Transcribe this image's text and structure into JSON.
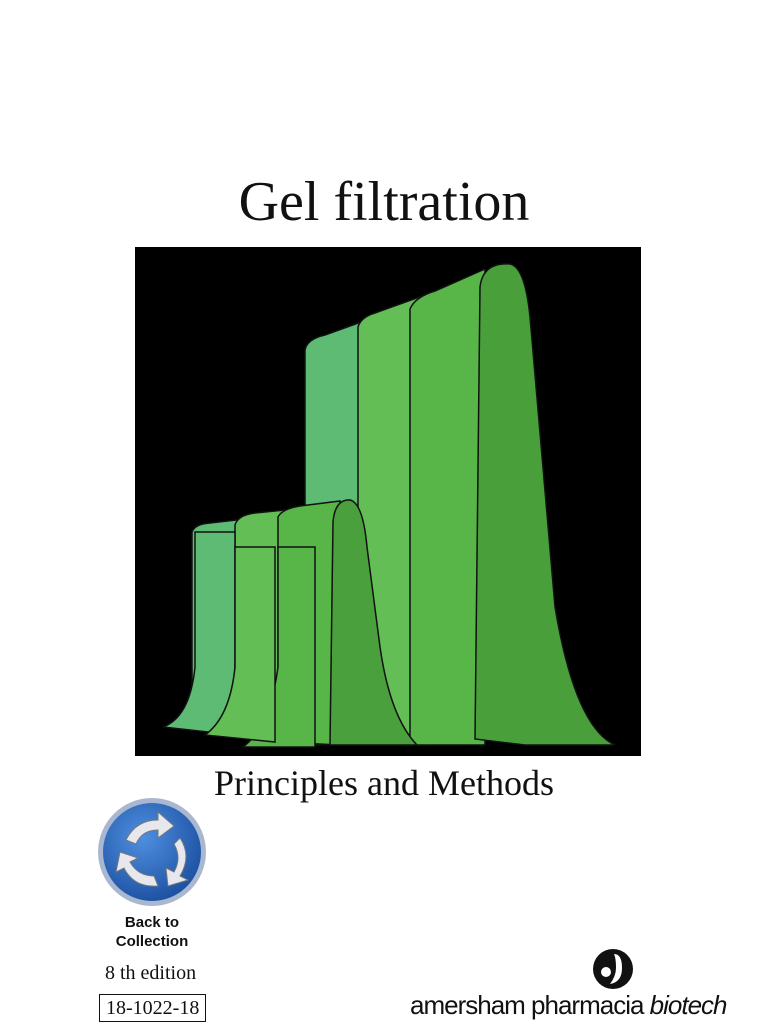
{
  "cover": {
    "title": "Gel filtration",
    "subtitle": "Principles and Methods"
  },
  "button": {
    "line1": "Back to",
    "line2": "Collection"
  },
  "edition": "8 th edition",
  "code": "18-1022-18",
  "logo": {
    "brand": "amersham pharmacia",
    "unit": "biotech"
  }
}
